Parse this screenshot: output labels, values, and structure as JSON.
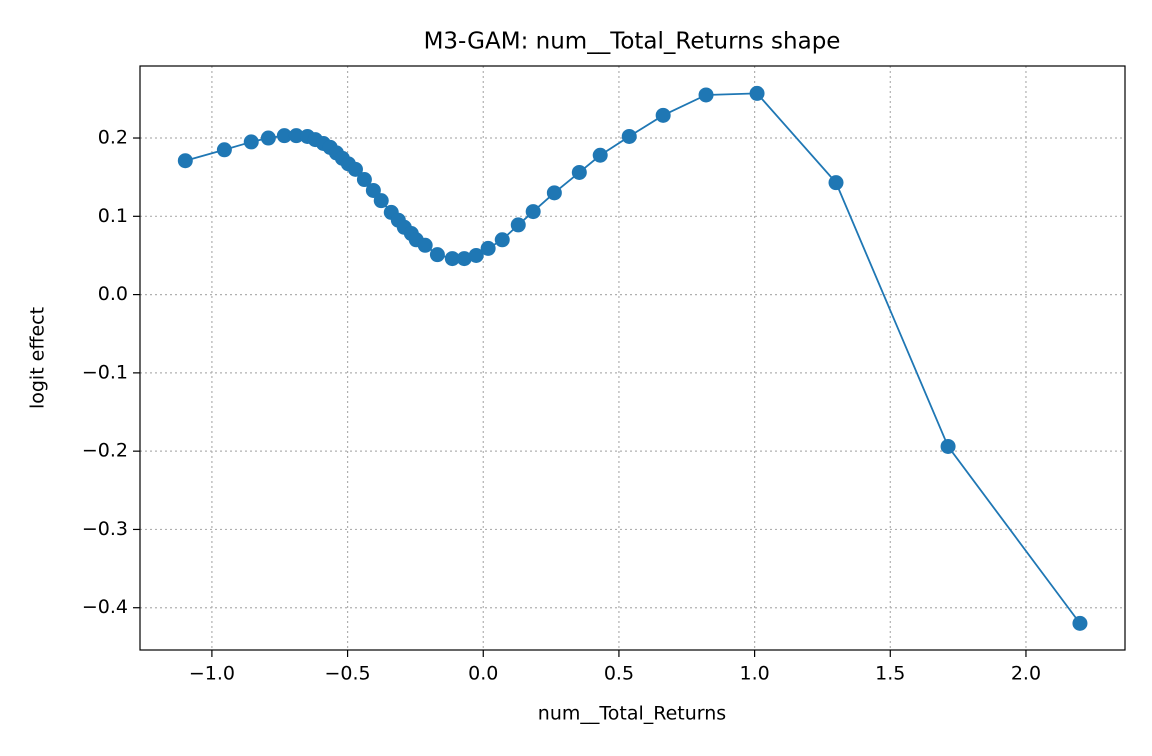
{
  "chart_data": {
    "type": "line",
    "title": "M3-GAM: num__Total_Returns shape",
    "xlabel": "num__Total_Returns",
    "ylabel": "logit effect",
    "x": [
      -1.098,
      -0.954,
      -0.855,
      -0.792,
      -0.733,
      -0.689,
      -0.648,
      -0.619,
      -0.589,
      -0.564,
      -0.541,
      -0.519,
      -0.497,
      -0.471,
      -0.438,
      -0.405,
      -0.376,
      -0.339,
      -0.313,
      -0.291,
      -0.265,
      -0.247,
      -0.214,
      -0.169,
      -0.114,
      -0.07,
      -0.026,
      0.018,
      0.07,
      0.129,
      0.184,
      0.262,
      0.354,
      0.431,
      0.538,
      0.663,
      0.821,
      1.009,
      1.3,
      1.713,
      2.199
    ],
    "series": [
      {
        "name": "num__Total_Returns",
        "color": "#1f77b4",
        "values": [
          0.171,
          0.185,
          0.195,
          0.2,
          0.203,
          0.203,
          0.202,
          0.198,
          0.193,
          0.188,
          0.181,
          0.174,
          0.167,
          0.16,
          0.147,
          0.133,
          0.12,
          0.105,
          0.095,
          0.086,
          0.078,
          0.07,
          0.063,
          0.051,
          0.046,
          0.046,
          0.05,
          0.059,
          0.07,
          0.089,
          0.106,
          0.13,
          0.156,
          0.178,
          0.202,
          0.229,
          0.255,
          0.257,
          0.143,
          -0.194,
          -0.42
        ]
      }
    ],
    "xlim": [
      -1.265,
      2.365
    ],
    "ylim": [
      -0.454,
      0.292
    ],
    "xticks": [
      {
        "value": -1.0,
        "label": "−1.0"
      },
      {
        "value": -0.5,
        "label": "−0.5"
      },
      {
        "value": 0.0,
        "label": "0.0"
      },
      0.5,
      {
        "value": 1.0,
        "label": "1.0"
      },
      1.5,
      {
        "value": 2.0,
        "label": "2.0"
      }
    ],
    "yticks": [
      {
        "value": -0.4,
        "label": "−0.4"
      },
      {
        "value": -0.3,
        "label": "−0.3"
      },
      {
        "value": -0.2,
        "label": "−0.2"
      },
      {
        "value": -0.1,
        "label": "−0.1"
      },
      {
        "value": 0.0,
        "label": "0.0"
      },
      0.1,
      0.2
    ],
    "grid": true
  }
}
